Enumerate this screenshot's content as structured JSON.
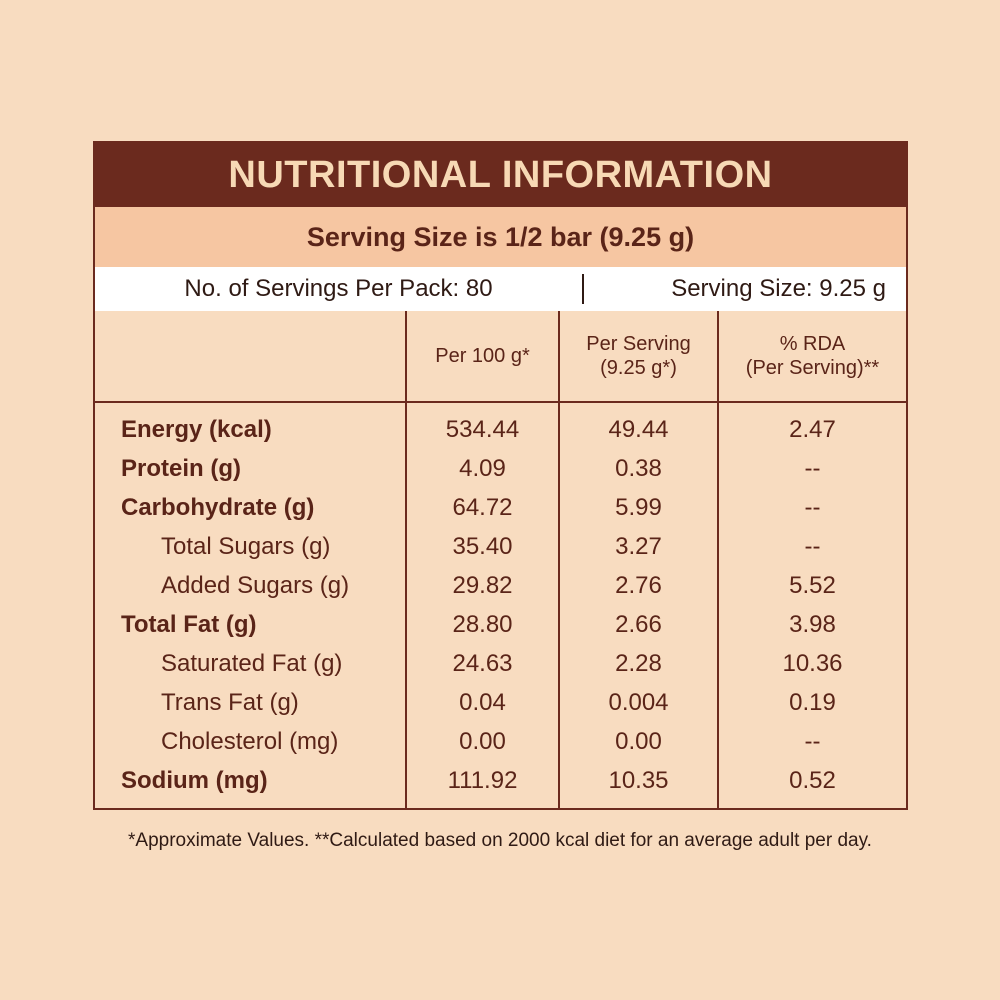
{
  "header": {
    "title": "NUTRITIONAL INFORMATION",
    "serving_banner": "Serving Size is 1/2 bar (9.25 g)",
    "servings_per_pack": "No. of Servings Per Pack: 80",
    "serving_size": "Serving Size: 9.25 g"
  },
  "table": {
    "columns": [
      [
        "Per 100 g*"
      ],
      [
        "Per Serving",
        "(9.25 g*)"
      ],
      [
        "% RDA",
        "(Per Serving)**"
      ]
    ],
    "rows": [
      {
        "label": "Energy (kcal)",
        "indent": false,
        "cells": [
          "534.44",
          "49.44",
          "2.47"
        ]
      },
      {
        "label": "Protein (g)",
        "indent": false,
        "cells": [
          "4.09",
          "0.38",
          "--"
        ]
      },
      {
        "label": "Carbohydrate (g)",
        "indent": false,
        "cells": [
          "64.72",
          "5.99",
          "--"
        ]
      },
      {
        "label": "Total Sugars (g)",
        "indent": true,
        "cells": [
          "35.40",
          "3.27",
          "--"
        ]
      },
      {
        "label": "Added Sugars (g)",
        "indent": true,
        "cells": [
          "29.82",
          "2.76",
          "5.52"
        ]
      },
      {
        "label": "Total Fat (g)",
        "indent": false,
        "cells": [
          "28.80",
          "2.66",
          "3.98"
        ]
      },
      {
        "label": "Saturated Fat (g)",
        "indent": true,
        "cells": [
          "24.63",
          "2.28",
          "10.36"
        ]
      },
      {
        "label": "Trans Fat (g)",
        "indent": true,
        "cells": [
          "0.04",
          "0.004",
          "0.19"
        ]
      },
      {
        "label": "Cholesterol (mg)",
        "indent": true,
        "cells": [
          "0.00",
          "0.00",
          "--"
        ]
      },
      {
        "label": "Sodium (mg)",
        "indent": false,
        "cells": [
          "111.92",
          "10.35",
          "0.52"
        ]
      }
    ]
  },
  "footnote": "*Approximate Values. **Calculated based on 2000 kcal diet for an average adult per day."
}
